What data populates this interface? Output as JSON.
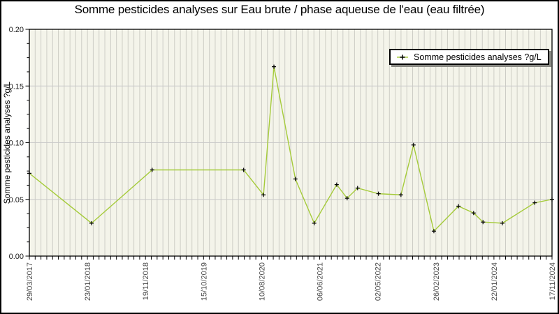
{
  "title": "Somme pesticides analyses sur Eau brute / phase aqueuse de l'eau (eau filtrée)",
  "legend": {
    "label": "Somme pesticides analyses ?g/L",
    "marker_icon": "line-with-plus-icon"
  },
  "colors": {
    "plot_background": "#f4f4ea",
    "grid_vertical": "#cdcdc5",
    "grid_horizontal": "#c9c9c9",
    "axis_frame": "#000000",
    "line": "#a5cb3a",
    "marker": "#000000",
    "y_tick_label": "#1a1a1a",
    "x_tick_label": "#4d4d4d",
    "legend_shadow": "#8a8a84"
  },
  "chart_data": {
    "type": "line",
    "title": "Somme pesticides analyses sur Eau brute / phase aqueuse de l'eau (eau filtrée)",
    "xlabel": "",
    "ylabel": "Somme pesticides analyses ?g/L",
    "ylim": [
      0.0,
      0.2
    ],
    "y_tick_labels": [
      "0.00",
      "0.05",
      "0.10",
      "0.15",
      "0.20"
    ],
    "y_tick_values": [
      0.0,
      0.05,
      0.1,
      0.15,
      0.2
    ],
    "y_minor_step": 0.0125,
    "x_tick_labels": [
      "29/03/2017",
      "23/01/2018",
      "19/11/2018",
      "15/10/2019",
      "10/08/2020",
      "06/06/2021",
      "02/05/2022",
      "26/02/2023",
      "22/01/2024",
      "17/11/2024"
    ],
    "x_minor_per_major": 10,
    "grid": "vertical minor gridlines on, horizontal major gridlines on",
    "legend_position": "top-right",
    "series": [
      {
        "name": "Somme pesticides analyses ?g/L",
        "line_color": "#a5cb3a",
        "marker": "black plus",
        "points": [
          {
            "date_approx": "29/03/2017",
            "x_frac": 0.0,
            "value": 0.073
          },
          {
            "date_approx": "24/02/2018",
            "x_frac": 0.119,
            "value": 0.029
          },
          {
            "date_approx": "14/01/2019",
            "x_frac": 0.235,
            "value": 0.076
          },
          {
            "date_approx": "16/05/2020",
            "x_frac": 0.41,
            "value": 0.076
          },
          {
            "date_approx": "30/08/2020",
            "x_frac": 0.448,
            "value": 0.054
          },
          {
            "date_approx": "25/10/2020",
            "x_frac": 0.468,
            "value": 0.167
          },
          {
            "date_approx": "16/02/2021",
            "x_frac": 0.509,
            "value": 0.068
          },
          {
            "date_approx": "28/05/2021",
            "x_frac": 0.545,
            "value": 0.029
          },
          {
            "date_approx": "25/09/2021",
            "x_frac": 0.588,
            "value": 0.063
          },
          {
            "date_approx": "19/11/2021",
            "x_frac": 0.608,
            "value": 0.051
          },
          {
            "date_approx": "14/01/2022",
            "x_frac": 0.628,
            "value": 0.06
          },
          {
            "date_approx": "06/05/2022",
            "x_frac": 0.668,
            "value": 0.055
          },
          {
            "date_approx": "02/09/2022",
            "x_frac": 0.711,
            "value": 0.054
          },
          {
            "date_approx": "09/11/2022",
            "x_frac": 0.735,
            "value": 0.098
          },
          {
            "date_approx": "28/02/2023",
            "x_frac": 0.774,
            "value": 0.022
          },
          {
            "date_approx": "09/07/2023",
            "x_frac": 0.821,
            "value": 0.044
          },
          {
            "date_approx": "28/09/2023",
            "x_frac": 0.85,
            "value": 0.038
          },
          {
            "date_approx": "17/11/2023",
            "x_frac": 0.868,
            "value": 0.03
          },
          {
            "date_approx": "28/02/2024",
            "x_frac": 0.905,
            "value": 0.029
          },
          {
            "date_approx": "19/08/2024",
            "x_frac": 0.967,
            "value": 0.047
          },
          {
            "date_approx": "17/11/2024",
            "x_frac": 1.0,
            "value": 0.05
          }
        ]
      }
    ]
  }
}
